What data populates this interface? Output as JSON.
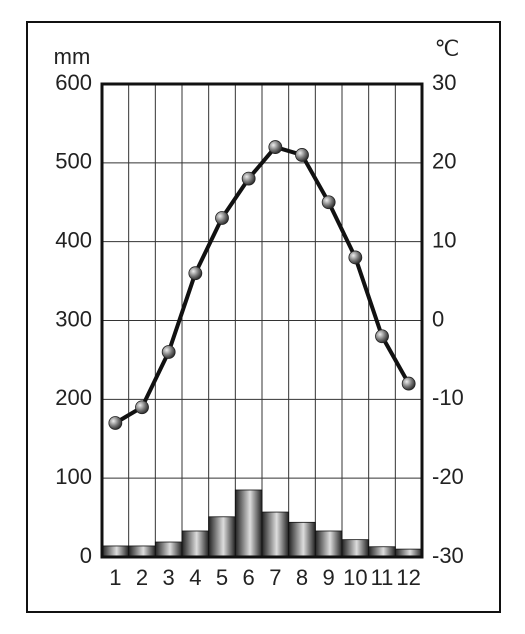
{
  "chart_data": {
    "type": "bar",
    "y_unit": "mm",
    "y2_unit": "℃",
    "categories": [
      "1",
      "2",
      "3",
      "4",
      "5",
      "6",
      "7",
      "8",
      "9",
      "10",
      "11",
      "12"
    ],
    "series": [
      {
        "type": "bar",
        "color": "#222222",
        "values": [
          14,
          14,
          19,
          33,
          51,
          85,
          57,
          44,
          33,
          22,
          13,
          10
        ]
      },
      {
        "type": "line",
        "axis": "y2",
        "color": "#111111",
        "values": [
          -13,
          -11,
          -4,
          6,
          13,
          18,
          22,
          21,
          15,
          8,
          -2,
          -8
        ]
      }
    ],
    "ylim": [
      0,
      600
    ],
    "yticks": [
      0,
      100,
      200,
      300,
      400,
      500,
      600
    ],
    "y2lim": [
      -30,
      30
    ],
    "y2ticks": [
      -30,
      -20,
      -10,
      0,
      10,
      20,
      30
    ],
    "grid": true
  }
}
